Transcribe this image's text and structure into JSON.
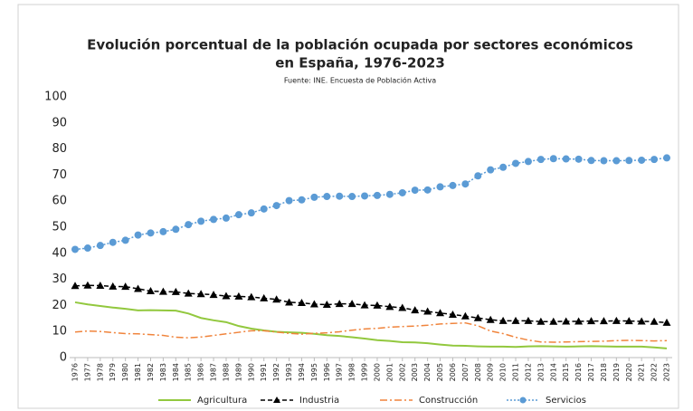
{
  "chart_data": {
    "type": "line",
    "title": [
      "Evolución porcentual de la población ocupada por sectores económicos",
      "en España, 1976-2023"
    ],
    "subtitle": "Fuente: INE. Encuesta de Población Activa",
    "categories": [
      "1976",
      "1977",
      "1978",
      "1979",
      "1980",
      "1981",
      "1982",
      "1983",
      "1984",
      "1985",
      "1986",
      "1987",
      "1988",
      "1989",
      "1990",
      "1991",
      "1992",
      "1993",
      "1994",
      "1995",
      "1996",
      "1997",
      "1998",
      "1999",
      "2000",
      "2001",
      "2002",
      "2003",
      "2004",
      "2005",
      "2006",
      "2007",
      "2008",
      "2009",
      "2010",
      "2011",
      "2012",
      "2013",
      "2014",
      "2015",
      "2016",
      "2017",
      "2018",
      "2019",
      "2020",
      "2021",
      "2022",
      "2023"
    ],
    "series": [
      {
        "name": "Agricultura",
        "color": "#92c83e",
        "values": [
          21.2,
          20.4,
          19.8,
          19.2,
          18.7,
          18.1,
          18.2,
          18.1,
          18,
          16.9,
          15.2,
          14.3,
          13.6,
          12.1,
          11.1,
          10.4,
          9.9,
          9.7,
          9.5,
          9.1,
          8.6,
          8.3,
          7.8,
          7.3,
          6.7,
          6.4,
          5.9,
          5.8,
          5.5,
          5.0,
          4.6,
          4.5,
          4.3,
          4.2,
          4.2,
          4.1,
          4.3,
          4.4,
          4.3,
          4.2,
          4.3,
          4.4,
          4.3,
          4.2,
          4.2,
          4.2,
          3.9,
          3.5
        ]
      },
      {
        "name": "Industria",
        "color": "#000000",
        "values": [
          27.5,
          27.7,
          27.6,
          27.3,
          27.2,
          26.4,
          25.5,
          25.3,
          25.2,
          24.6,
          24.4,
          24.1,
          23.6,
          23.5,
          23.2,
          22.8,
          22.3,
          21.2,
          21,
          20.5,
          20.3,
          20.6,
          20.6,
          20.1,
          20,
          19.5,
          19.1,
          18.2,
          17.7,
          17.1,
          16.5,
          15.9,
          15.2,
          14.5,
          14.1,
          14.1,
          14.1,
          13.8,
          13.8,
          13.9,
          13.9,
          14,
          14,
          14.1,
          14,
          13.9,
          13.8,
          13.4
        ]
      },
      {
        "name": "Construcción",
        "color": "#f0843c",
        "values": [
          9.8,
          10.2,
          10,
          9.6,
          9.2,
          9.1,
          8.8,
          8.5,
          7.8,
          7.6,
          7.9,
          8.5,
          9.1,
          9.7,
          10.3,
          10.3,
          9.8,
          9.3,
          9,
          9.3,
          9.5,
          9.9,
          10.5,
          11,
          11.2,
          11.7,
          11.9,
          12.1,
          12.4,
          12.9,
          13.1,
          13.3,
          12.2,
          10.2,
          9.2,
          7.8,
          6.7,
          6,
          5.9,
          6,
          6.1,
          6.2,
          6.3,
          6.5,
          6.6,
          6.5,
          6.4,
          6.5
        ]
      },
      {
        "name": "Servicios",
        "color": "#5b9bd5",
        "values": [
          41.5,
          42,
          43,
          44.2,
          45,
          47,
          47.8,
          48.3,
          49.2,
          51,
          52.3,
          53,
          53.5,
          54.8,
          55.5,
          57,
          58.3,
          60.2,
          60.5,
          61.5,
          61.8,
          61.9,
          61.8,
          62,
          62.2,
          62.6,
          63.2,
          64.2,
          64.3,
          65.5,
          66,
          66.6,
          69.7,
          72,
          73,
          74.5,
          75.2,
          76,
          76.3,
          76.2,
          76.1,
          75.6,
          75.5,
          75.5,
          75.6,
          75.7,
          76,
          76.6
        ]
      }
    ],
    "ylim": [
      0,
      100
    ],
    "yticks": [
      0,
      10,
      20,
      30,
      40,
      50,
      60,
      70,
      80,
      90,
      100
    ],
    "legend": "bottom"
  }
}
